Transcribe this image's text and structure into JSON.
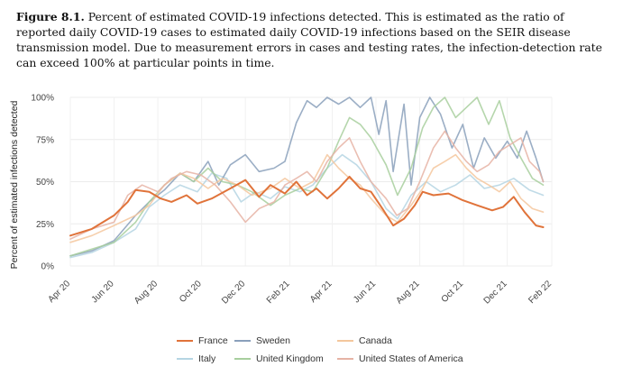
{
  "caption": {
    "label": "Figure 8.1.",
    "text": "Percent of estimated COVID-19 infections detected. This is estimated as the ratio of reported daily COVID-19 cases to estimated daily COVID-19 infections based on the SEIR disease transmission model. Due to measurement errors in cases and testing rates, the infection-detection rate can exceed 100% at particular points in time."
  },
  "chart_data": {
    "type": "line",
    "title": "",
    "xlabel": "",
    "ylabel": "Percent of estimated infections detected",
    "x_ticks": [
      "Apr 20",
      "Jun 20",
      "Aug 20",
      "Oct 20",
      "Dec 20",
      "Feb 21",
      "Apr 21",
      "Jun 21",
      "Aug 21",
      "Oct 21",
      "Dec 21",
      "Feb 22"
    ],
    "y_ticks": [
      "0%",
      "25%",
      "50%",
      "75%",
      "100%"
    ],
    "ylim": [
      0,
      100
    ],
    "x_start": "2020-04-01",
    "x_end": "2022-02-01",
    "grid": true,
    "legend_position": "bottom",
    "series": [
      {
        "name": "France",
        "color": "#e0733a",
        "emphasis": true,
        "points": [
          [
            "2020-04-01",
            18
          ],
          [
            "2020-05-01",
            22
          ],
          [
            "2020-06-01",
            30
          ],
          [
            "2020-06-20",
            38
          ],
          [
            "2020-07-01",
            45
          ],
          [
            "2020-07-20",
            44
          ],
          [
            "2020-08-05",
            40
          ],
          [
            "2020-08-20",
            38
          ],
          [
            "2020-09-10",
            42
          ],
          [
            "2020-09-25",
            37
          ],
          [
            "2020-10-15",
            40
          ],
          [
            "2020-11-10",
            46
          ],
          [
            "2020-12-01",
            51
          ],
          [
            "2020-12-20",
            41
          ],
          [
            "2021-01-05",
            48
          ],
          [
            "2021-01-25",
            43
          ],
          [
            "2021-02-10",
            50
          ],
          [
            "2021-02-25",
            42
          ],
          [
            "2021-03-10",
            46
          ],
          [
            "2021-03-25",
            40
          ],
          [
            "2021-04-10",
            46
          ],
          [
            "2021-04-25",
            53
          ],
          [
            "2021-05-10",
            46
          ],
          [
            "2021-05-25",
            44
          ],
          [
            "2021-06-10",
            34
          ],
          [
            "2021-06-25",
            24
          ],
          [
            "2021-07-10",
            28
          ],
          [
            "2021-07-25",
            36
          ],
          [
            "2021-08-05",
            44
          ],
          [
            "2021-08-20",
            42
          ],
          [
            "2021-09-10",
            43
          ],
          [
            "2021-09-30",
            39
          ],
          [
            "2021-10-20",
            36
          ],
          [
            "2021-11-10",
            33
          ],
          [
            "2021-11-25",
            35
          ],
          [
            "2021-12-10",
            41
          ],
          [
            "2021-12-25",
            32
          ],
          [
            "2022-01-10",
            24
          ],
          [
            "2022-01-20",
            23
          ]
        ]
      },
      {
        "name": "Italy",
        "color": "#b5d5e3",
        "emphasis": false,
        "points": [
          [
            "2020-04-01",
            5
          ],
          [
            "2020-05-01",
            8
          ],
          [
            "2020-06-01",
            14
          ],
          [
            "2020-07-01",
            22
          ],
          [
            "2020-07-20",
            35
          ],
          [
            "2020-08-10",
            42
          ],
          [
            "2020-09-01",
            48
          ],
          [
            "2020-09-25",
            44
          ],
          [
            "2020-10-15",
            55
          ],
          [
            "2020-11-05",
            52
          ],
          [
            "2020-11-25",
            38
          ],
          [
            "2020-12-15",
            44
          ],
          [
            "2021-01-05",
            40
          ],
          [
            "2021-01-25",
            47
          ],
          [
            "2021-02-15",
            44
          ],
          [
            "2021-03-05",
            48
          ],
          [
            "2021-03-25",
            58
          ],
          [
            "2021-04-15",
            66
          ],
          [
            "2021-05-05",
            60
          ],
          [
            "2021-05-25",
            50
          ],
          [
            "2021-06-15",
            34
          ],
          [
            "2021-07-01",
            28
          ],
          [
            "2021-07-20",
            42
          ],
          [
            "2021-08-10",
            50
          ],
          [
            "2021-08-30",
            44
          ],
          [
            "2021-09-20",
            48
          ],
          [
            "2021-10-10",
            54
          ],
          [
            "2021-10-30",
            46
          ],
          [
            "2021-11-20",
            48
          ],
          [
            "2021-12-10",
            52
          ],
          [
            "2022-01-01",
            45
          ],
          [
            "2022-01-20",
            42
          ]
        ]
      },
      {
        "name": "Sweden",
        "color": "#8aa0bb",
        "emphasis": false,
        "points": [
          [
            "2020-04-01",
            6
          ],
          [
            "2020-05-01",
            9
          ],
          [
            "2020-06-01",
            15
          ],
          [
            "2020-07-01",
            30
          ],
          [
            "2020-07-20",
            38
          ],
          [
            "2020-08-10",
            45
          ],
          [
            "2020-09-01",
            55
          ],
          [
            "2020-09-20",
            50
          ],
          [
            "2020-10-10",
            62
          ],
          [
            "2020-10-25",
            48
          ],
          [
            "2020-11-10",
            60
          ],
          [
            "2020-12-01",
            66
          ],
          [
            "2020-12-20",
            56
          ],
          [
            "2021-01-10",
            58
          ],
          [
            "2021-01-25",
            62
          ],
          [
            "2021-02-10",
            85
          ],
          [
            "2021-02-25",
            98
          ],
          [
            "2021-03-10",
            94
          ],
          [
            "2021-03-25",
            100
          ],
          [
            "2021-04-10",
            96
          ],
          [
            "2021-04-25",
            100
          ],
          [
            "2021-05-10",
            94
          ],
          [
            "2021-05-25",
            100
          ],
          [
            "2021-06-05",
            78
          ],
          [
            "2021-06-15",
            98
          ],
          [
            "2021-06-25",
            56
          ],
          [
            "2021-07-10",
            96
          ],
          [
            "2021-07-20",
            48
          ],
          [
            "2021-08-01",
            88
          ],
          [
            "2021-08-15",
            100
          ],
          [
            "2021-08-30",
            90
          ],
          [
            "2021-09-15",
            70
          ],
          [
            "2021-09-30",
            84
          ],
          [
            "2021-10-15",
            58
          ],
          [
            "2021-10-30",
            76
          ],
          [
            "2021-11-15",
            64
          ],
          [
            "2021-12-01",
            74
          ],
          [
            "2021-12-15",
            64
          ],
          [
            "2021-12-28",
            80
          ],
          [
            "2022-01-10",
            64
          ],
          [
            "2022-01-20",
            50
          ]
        ]
      },
      {
        "name": "United Kingdom",
        "color": "#a8cf9e",
        "emphasis": false,
        "points": [
          [
            "2020-04-01",
            6
          ],
          [
            "2020-05-01",
            10
          ],
          [
            "2020-06-01",
            14
          ],
          [
            "2020-07-01",
            26
          ],
          [
            "2020-07-20",
            38
          ],
          [
            "2020-08-10",
            48
          ],
          [
            "2020-09-01",
            55
          ],
          [
            "2020-09-20",
            50
          ],
          [
            "2020-10-10",
            58
          ],
          [
            "2020-10-30",
            50
          ],
          [
            "2020-11-20",
            48
          ],
          [
            "2020-12-10",
            44
          ],
          [
            "2021-01-05",
            36
          ],
          [
            "2021-01-25",
            42
          ],
          [
            "2021-02-15",
            46
          ],
          [
            "2021-03-05",
            44
          ],
          [
            "2021-03-25",
            58
          ],
          [
            "2021-04-10",
            74
          ],
          [
            "2021-04-25",
            88
          ],
          [
            "2021-05-10",
            84
          ],
          [
            "2021-05-25",
            76
          ],
          [
            "2021-06-15",
            60
          ],
          [
            "2021-07-01",
            42
          ],
          [
            "2021-07-20",
            58
          ],
          [
            "2021-08-05",
            82
          ],
          [
            "2021-08-20",
            94
          ],
          [
            "2021-09-05",
            100
          ],
          [
            "2021-09-20",
            88
          ],
          [
            "2021-10-05",
            94
          ],
          [
            "2021-10-20",
            100
          ],
          [
            "2021-11-05",
            84
          ],
          [
            "2021-11-20",
            98
          ],
          [
            "2021-12-05",
            76
          ],
          [
            "2021-12-20",
            64
          ],
          [
            "2022-01-05",
            52
          ],
          [
            "2022-01-20",
            48
          ]
        ]
      },
      {
        "name": "Canada",
        "color": "#f4c79d",
        "emphasis": false,
        "points": [
          [
            "2020-04-01",
            14
          ],
          [
            "2020-05-01",
            18
          ],
          [
            "2020-06-01",
            24
          ],
          [
            "2020-07-01",
            30
          ],
          [
            "2020-07-20",
            36
          ],
          [
            "2020-08-10",
            48
          ],
          [
            "2020-09-01",
            55
          ],
          [
            "2020-09-20",
            52
          ],
          [
            "2020-10-10",
            46
          ],
          [
            "2020-10-30",
            52
          ],
          [
            "2020-11-20",
            48
          ],
          [
            "2020-12-10",
            42
          ],
          [
            "2021-01-05",
            46
          ],
          [
            "2021-01-25",
            52
          ],
          [
            "2021-02-15",
            46
          ],
          [
            "2021-03-05",
            50
          ],
          [
            "2021-03-25",
            66
          ],
          [
            "2021-04-10",
            58
          ],
          [
            "2021-04-25",
            52
          ],
          [
            "2021-05-10",
            48
          ],
          [
            "2021-05-25",
            40
          ],
          [
            "2021-06-15",
            30
          ],
          [
            "2021-07-01",
            26
          ],
          [
            "2021-07-20",
            36
          ],
          [
            "2021-08-05",
            46
          ],
          [
            "2021-08-20",
            58
          ],
          [
            "2021-09-05",
            62
          ],
          [
            "2021-09-20",
            66
          ],
          [
            "2021-10-05",
            58
          ],
          [
            "2021-10-20",
            52
          ],
          [
            "2021-11-05",
            48
          ],
          [
            "2021-11-20",
            44
          ],
          [
            "2021-12-05",
            50
          ],
          [
            "2021-12-20",
            40
          ],
          [
            "2022-01-05",
            34
          ],
          [
            "2022-01-20",
            32
          ]
        ]
      },
      {
        "name": "United States of America",
        "color": "#e6b3a5",
        "emphasis": false,
        "points": [
          [
            "2020-04-01",
            16
          ],
          [
            "2020-05-01",
            22
          ],
          [
            "2020-06-01",
            26
          ],
          [
            "2020-06-20",
            42
          ],
          [
            "2020-07-10",
            48
          ],
          [
            "2020-08-01",
            44
          ],
          [
            "2020-08-20",
            52
          ],
          [
            "2020-09-10",
            56
          ],
          [
            "2020-09-30",
            54
          ],
          [
            "2020-10-20",
            48
          ],
          [
            "2020-11-10",
            38
          ],
          [
            "2020-12-01",
            26
          ],
          [
            "2020-12-20",
            34
          ],
          [
            "2021-01-10",
            38
          ],
          [
            "2021-01-25",
            48
          ],
          [
            "2021-02-10",
            52
          ],
          [
            "2021-02-25",
            56
          ],
          [
            "2021-03-10",
            50
          ],
          [
            "2021-03-25",
            62
          ],
          [
            "2021-04-10",
            70
          ],
          [
            "2021-04-25",
            76
          ],
          [
            "2021-05-10",
            62
          ],
          [
            "2021-05-25",
            50
          ],
          [
            "2021-06-15",
            40
          ],
          [
            "2021-06-30",
            30
          ],
          [
            "2021-07-15",
            34
          ],
          [
            "2021-08-01",
            50
          ],
          [
            "2021-08-20",
            70
          ],
          [
            "2021-09-05",
            80
          ],
          [
            "2021-09-20",
            70
          ],
          [
            "2021-10-05",
            62
          ],
          [
            "2021-10-20",
            56
          ],
          [
            "2021-11-05",
            60
          ],
          [
            "2021-11-20",
            68
          ],
          [
            "2021-12-05",
            72
          ],
          [
            "2021-12-20",
            76
          ],
          [
            "2022-01-01",
            62
          ],
          [
            "2022-01-15",
            56
          ],
          [
            "2022-01-20",
            50
          ]
        ]
      }
    ]
  }
}
